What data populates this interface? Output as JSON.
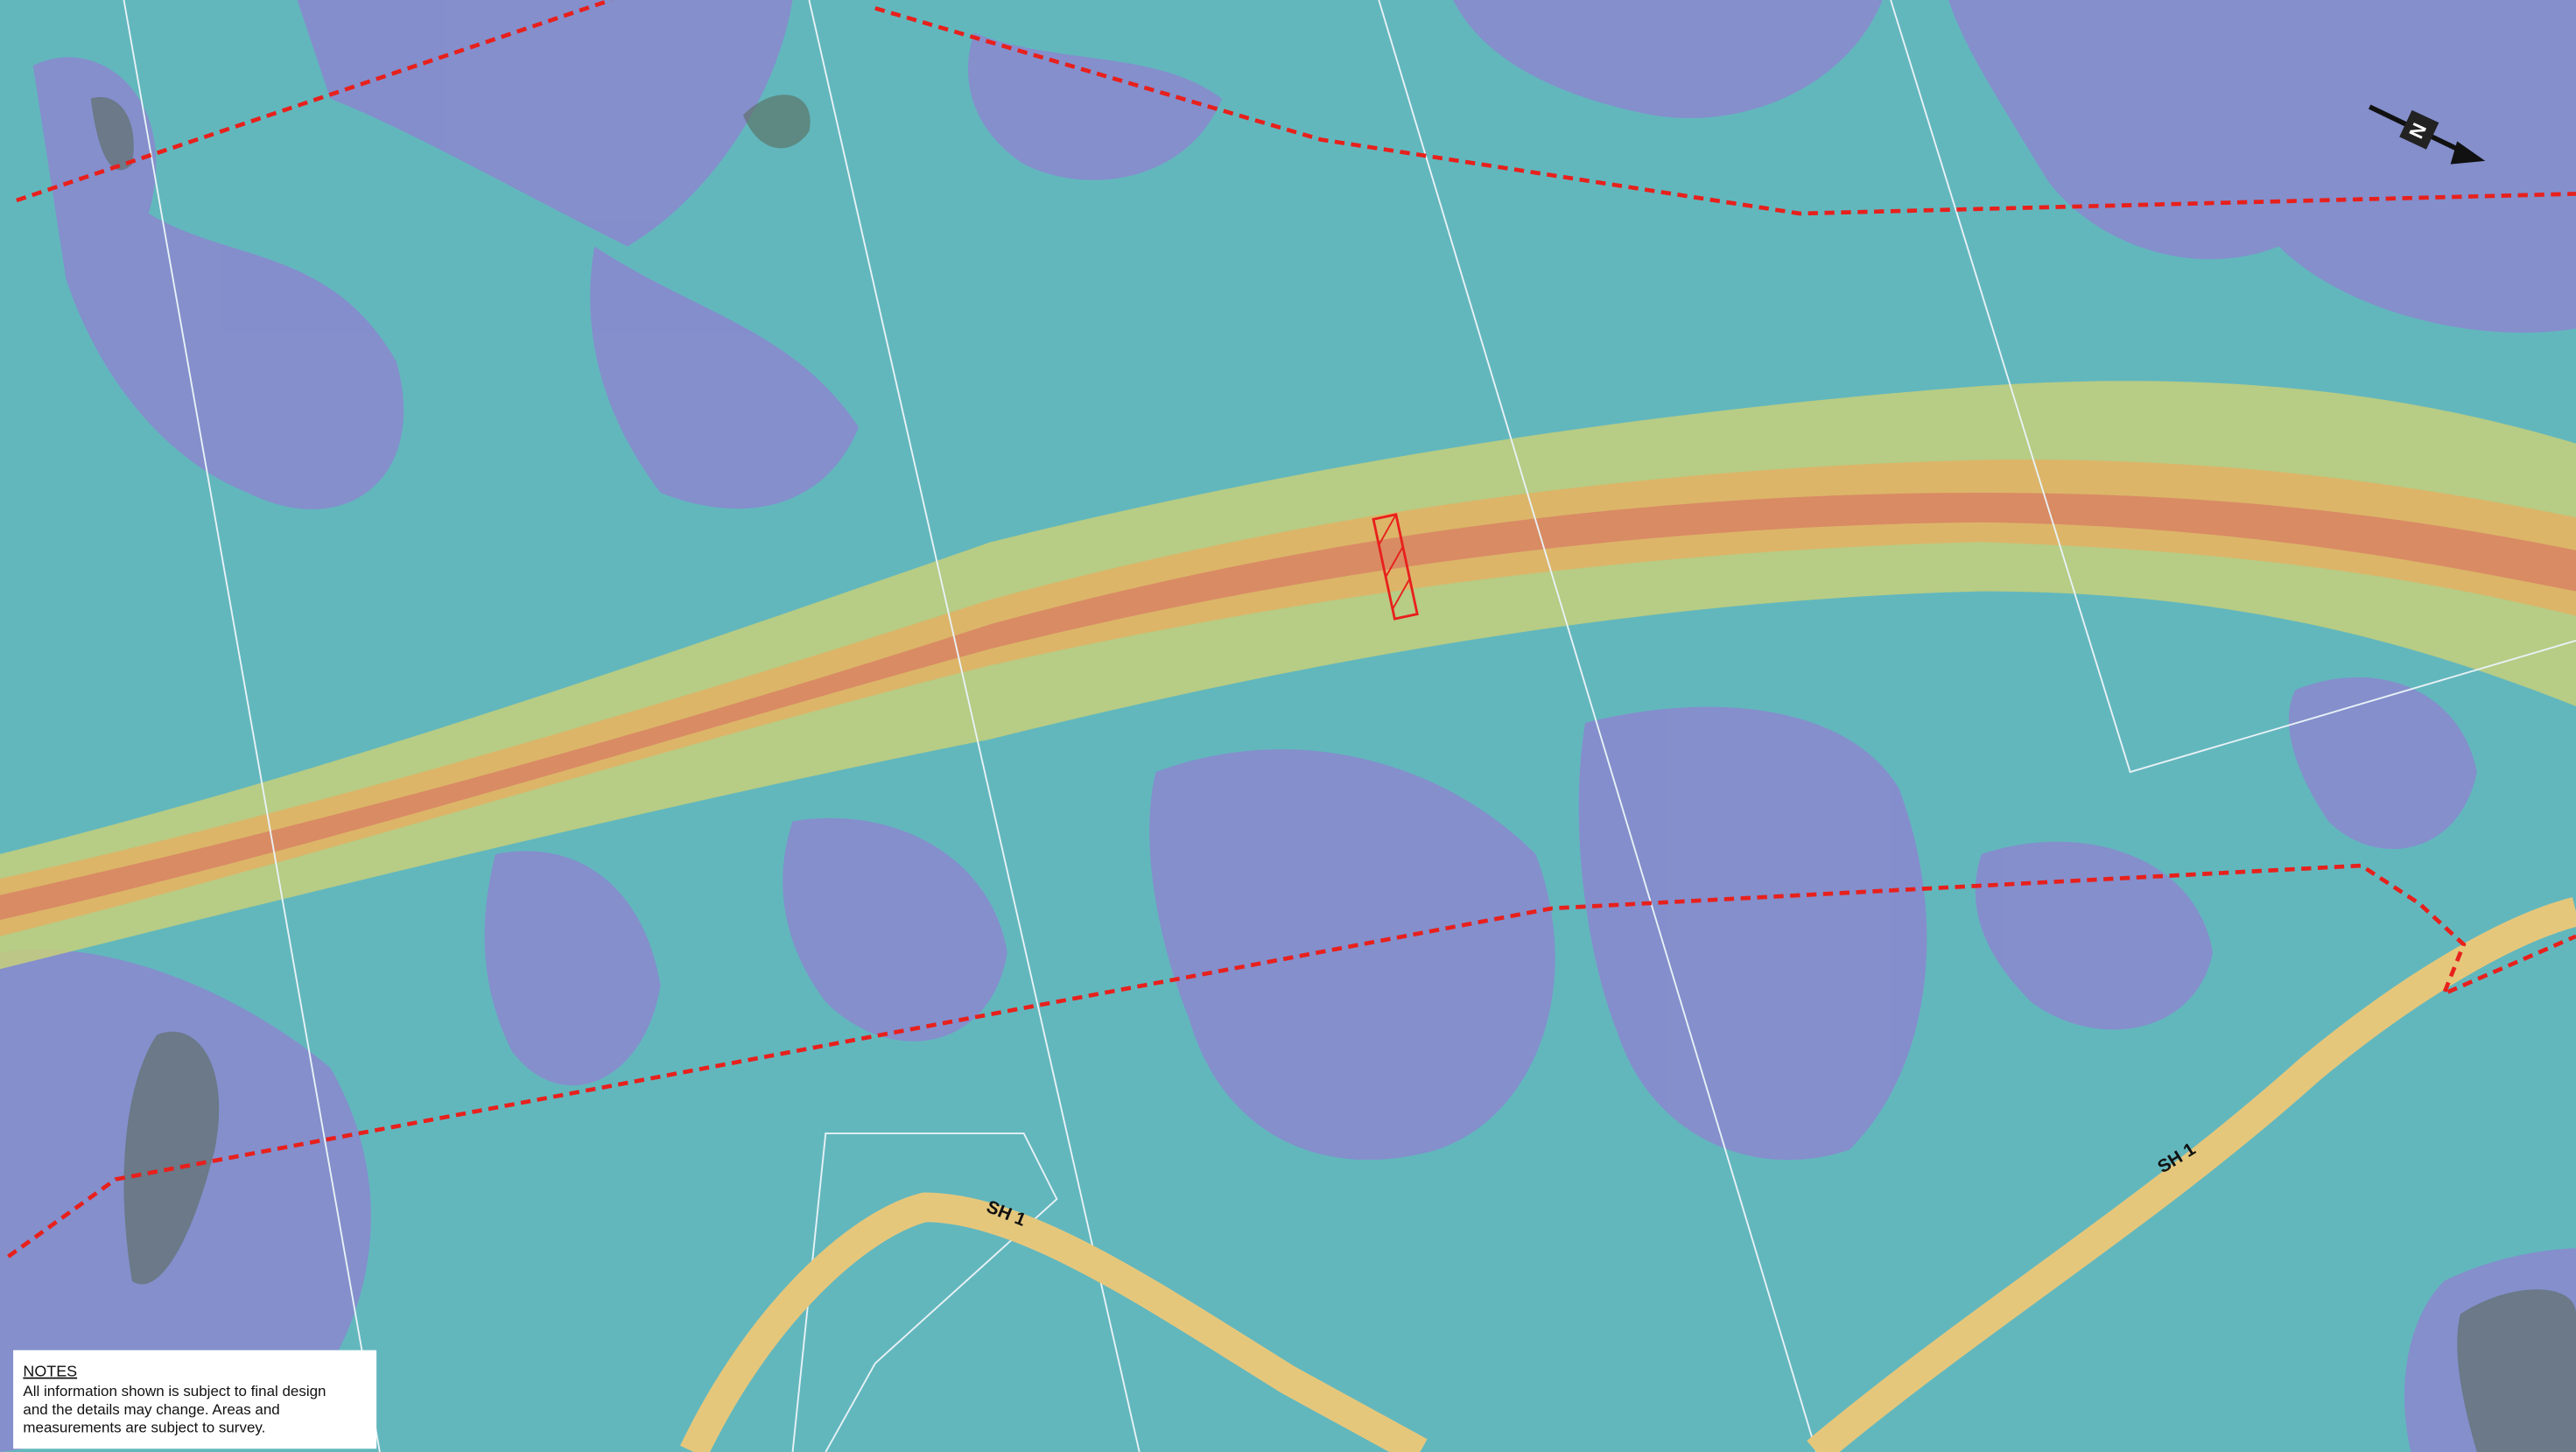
{
  "map": {
    "road_labels": [
      "SH 1",
      "SH 1"
    ],
    "north_arrow": "N",
    "notes": {
      "title": "NOTES",
      "lines": [
        "All information shown is subject to final design",
        "and the details may change. Areas and",
        "measurements are subject to survey."
      ]
    }
  }
}
